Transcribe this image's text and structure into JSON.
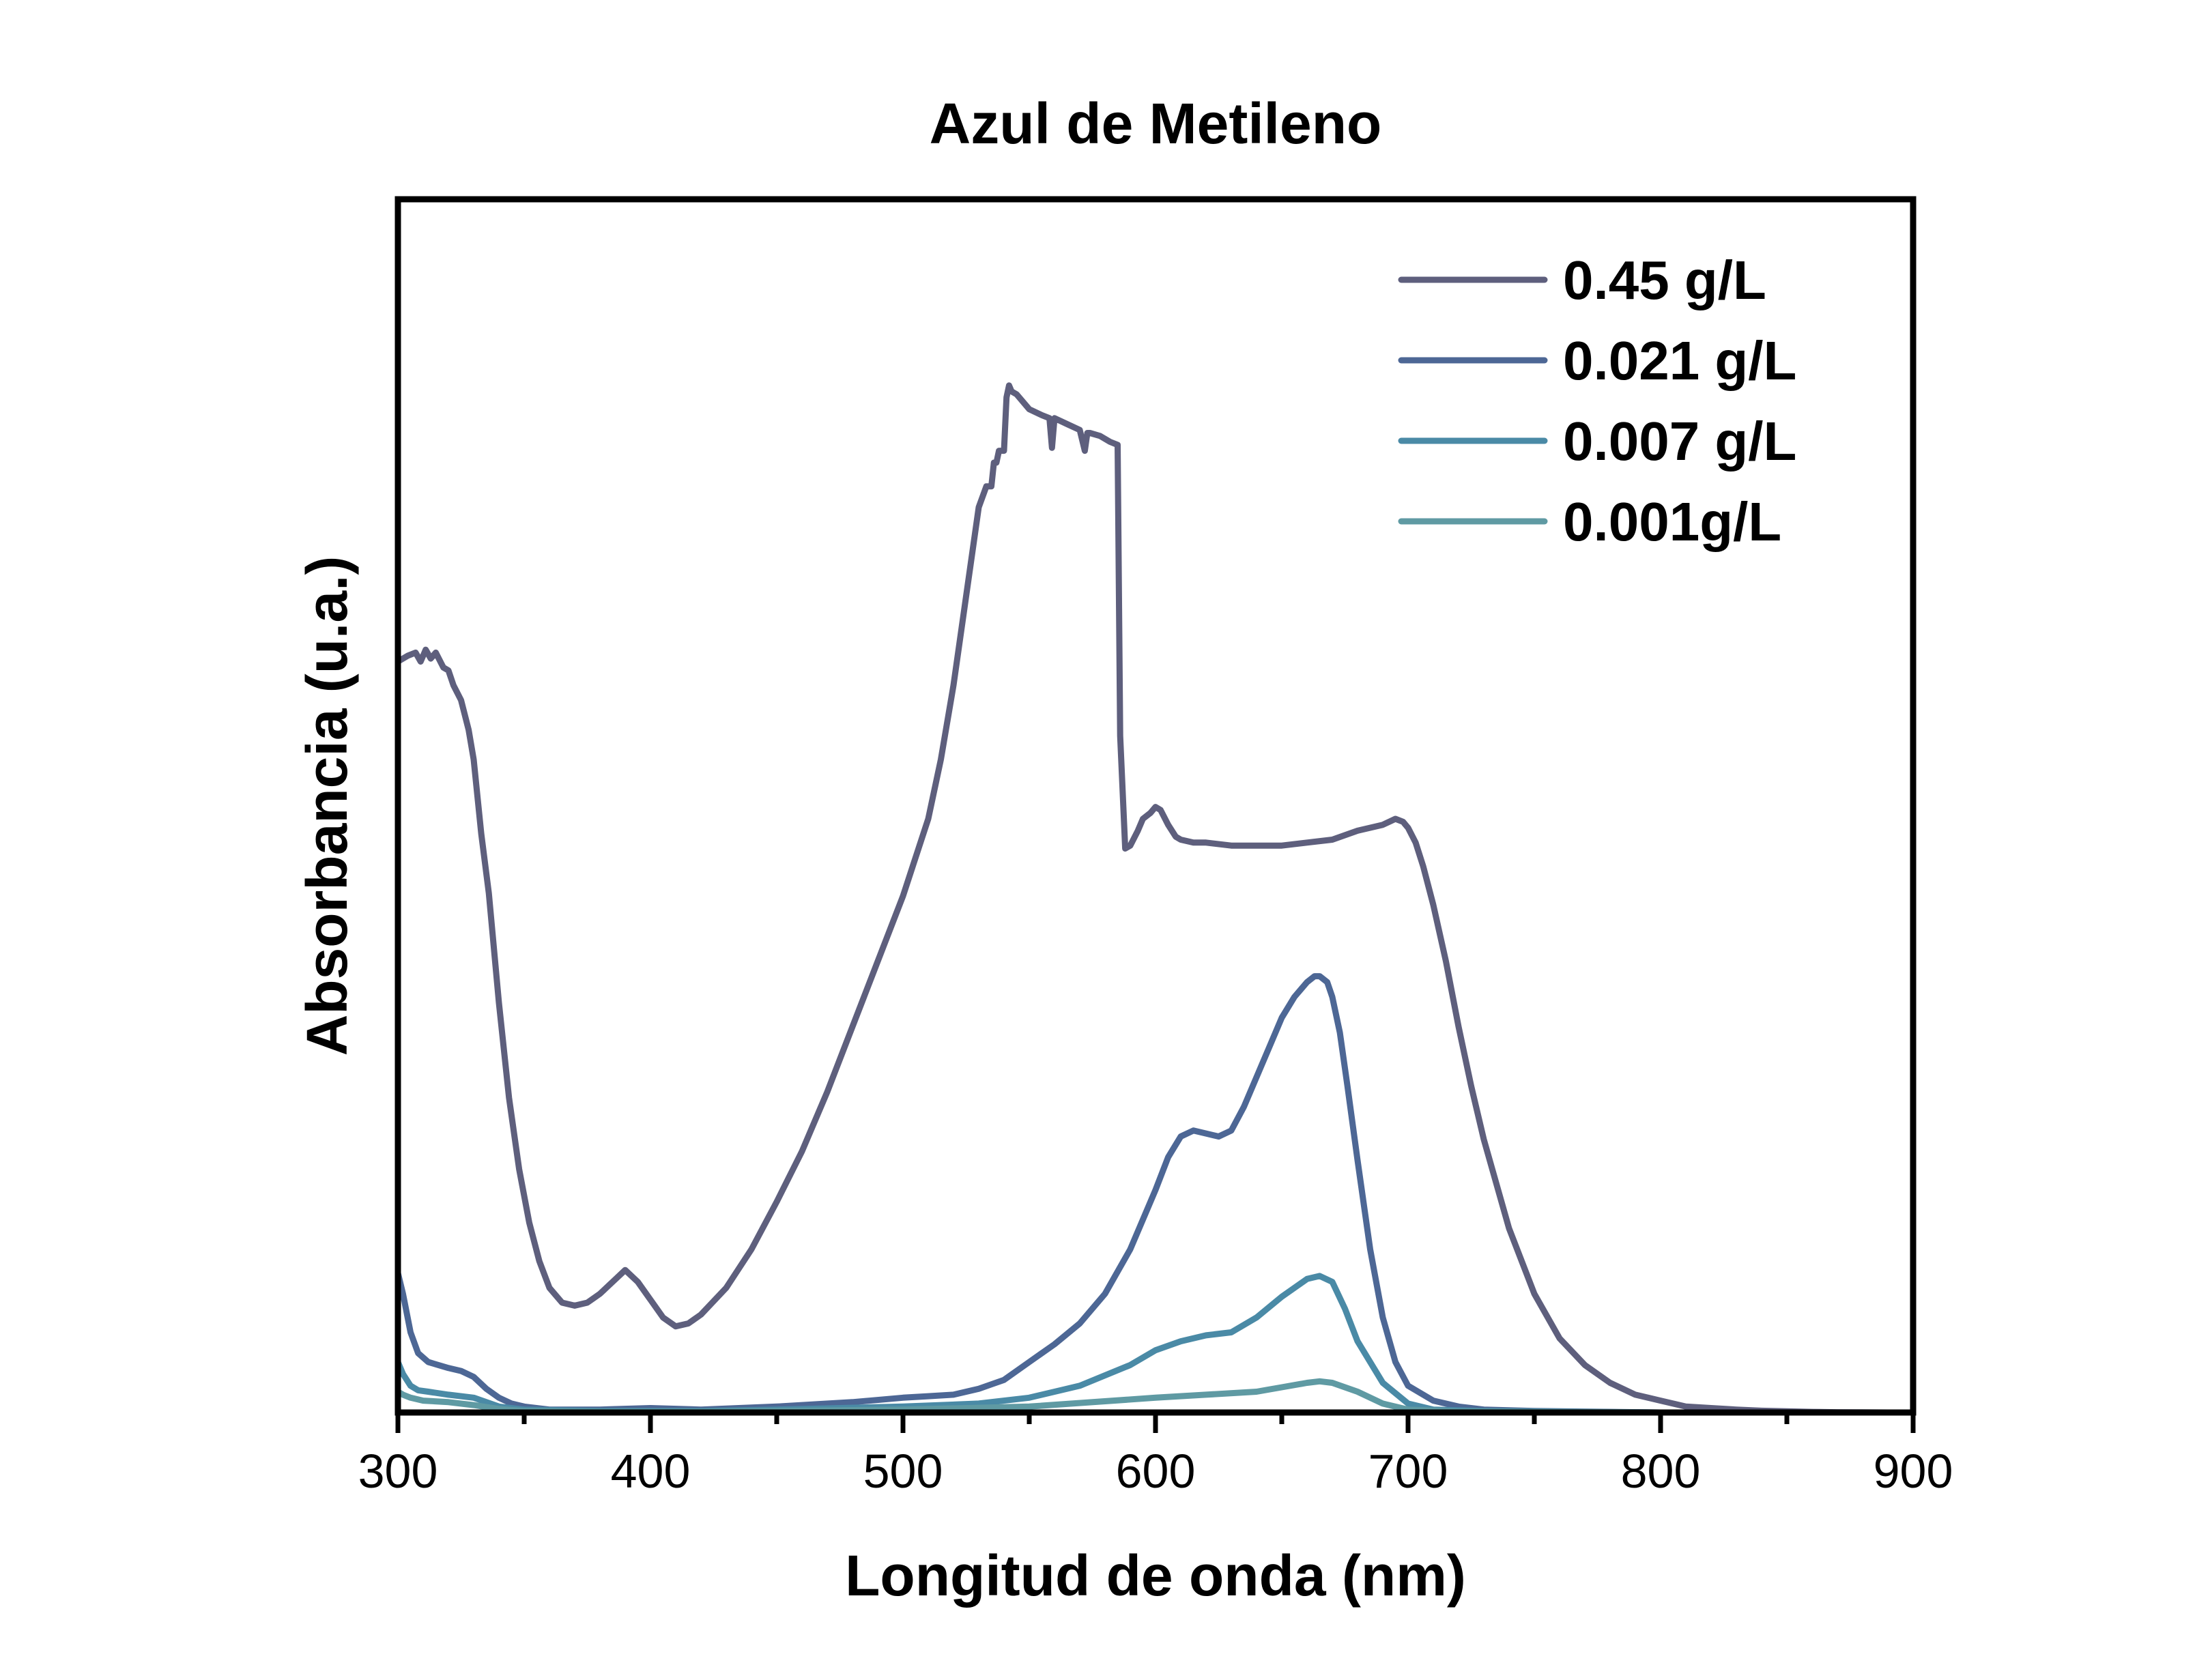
{
  "chart_data": {
    "type": "line",
    "title": "Azul de Metileno",
    "xlabel": "Longitud de onda (nm)",
    "ylabel": "Absorbancia (u.a.)",
    "xlim": [
      300,
      900
    ],
    "ylim": [
      0,
      4.0
    ],
    "x_major_ticks": [
      300,
      400,
      500,
      600,
      700,
      800,
      900
    ],
    "x_minor_ticks": [
      350,
      450,
      550,
      650,
      750,
      850
    ],
    "x_tick_labels": [
      "300",
      "400",
      "500",
      "600",
      "700",
      "800",
      "900"
    ],
    "y_tick_labels_shown": false,
    "legend_position": "top-right",
    "grid": false,
    "series": [
      {
        "name": "0.45 g/L",
        "color": "#5e5f7d",
        "x": [
          300,
          304,
          307,
          309,
          311,
          313,
          315,
          318,
          320,
          322,
          325,
          328,
          330,
          333,
          336,
          340,
          344,
          348,
          352,
          356,
          360,
          365,
          370,
          375,
          380,
          385,
          390,
          395,
          400,
          405,
          410,
          415,
          420,
          430,
          440,
          450,
          460,
          470,
          480,
          490,
          500,
          510,
          515,
          520,
          525,
          530,
          533,
          535,
          536,
          537,
          538,
          539,
          540,
          541,
          542,
          543,
          545,
          550,
          555,
          558,
          559,
          560,
          565,
          570,
          572,
          573,
          574,
          578,
          582,
          585,
          586,
          588,
          590,
          593,
          595,
          598,
          600,
          602,
          605,
          608,
          610,
          615,
          620,
          630,
          640,
          650,
          660,
          670,
          680,
          690,
          695,
          698,
          700,
          703,
          706,
          710,
          715,
          720,
          725,
          730,
          740,
          750,
          760,
          770,
          780,
          790,
          800,
          810,
          820,
          830,
          840,
          850,
          860,
          870,
          880,
          890,
          900
        ],
        "y": [
          2.53,
          2.55,
          2.56,
          2.53,
          2.57,
          2.54,
          2.56,
          2.51,
          2.5,
          2.45,
          2.4,
          2.3,
          2.2,
          1.95,
          1.75,
          1.38,
          1.06,
          0.82,
          0.64,
          0.51,
          0.42,
          0.37,
          0.36,
          0.37,
          0.4,
          0.44,
          0.48,
          0.44,
          0.38,
          0.32,
          0.29,
          0.3,
          0.33,
          0.42,
          0.55,
          0.71,
          0.88,
          1.08,
          1.3,
          1.52,
          1.74,
          2.0,
          2.2,
          2.45,
          2.75,
          3.05,
          3.12,
          3.12,
          3.2,
          3.2,
          3.24,
          3.24,
          3.24,
          3.42,
          3.46,
          3.44,
          3.43,
          3.38,
          3.36,
          3.35,
          3.25,
          3.35,
          3.33,
          3.31,
          3.24,
          3.3,
          3.3,
          3.29,
          3.27,
          3.26,
          2.28,
          1.9,
          1.91,
          1.96,
          2.0,
          2.02,
          2.04,
          2.03,
          1.98,
          1.94,
          1.93,
          1.92,
          1.92,
          1.91,
          1.91,
          1.91,
          1.92,
          1.93,
          1.96,
          1.98,
          2.0,
          1.99,
          1.97,
          1.92,
          1.84,
          1.71,
          1.52,
          1.3,
          1.1,
          0.92,
          0.62,
          0.4,
          0.25,
          0.16,
          0.1,
          0.06,
          0.04,
          0.02,
          0.015,
          0.01,
          0.006,
          0.004,
          0.002,
          0.001,
          0.0005,
          0.0,
          0.0
        ]
      },
      {
        "name": "0.021 g/L",
        "color": "#4d6795",
        "x": [
          300,
          302,
          305,
          308,
          312,
          316,
          320,
          325,
          330,
          335,
          340,
          345,
          350,
          360,
          380,
          400,
          420,
          450,
          480,
          500,
          510,
          520,
          530,
          540,
          550,
          560,
          570,
          580,
          590,
          600,
          605,
          610,
          615,
          620,
          625,
          630,
          635,
          640,
          645,
          650,
          655,
          660,
          663,
          665,
          668,
          670,
          673,
          676,
          680,
          685,
          690,
          695,
          700,
          710,
          720,
          730,
          750,
          800,
          850,
          900
        ],
        "y": [
          0.47,
          0.4,
          0.27,
          0.2,
          0.17,
          0.16,
          0.15,
          0.14,
          0.12,
          0.08,
          0.05,
          0.03,
          0.02,
          0.01,
          0.01,
          0.015,
          0.01,
          0.02,
          0.035,
          0.05,
          0.055,
          0.06,
          0.08,
          0.11,
          0.17,
          0.23,
          0.3,
          0.4,
          0.55,
          0.75,
          0.86,
          0.93,
          0.95,
          0.94,
          0.93,
          0.95,
          1.03,
          1.13,
          1.23,
          1.33,
          1.4,
          1.45,
          1.47,
          1.47,
          1.45,
          1.4,
          1.28,
          1.1,
          0.85,
          0.55,
          0.32,
          0.17,
          0.09,
          0.04,
          0.02,
          0.01,
          0.005,
          0.0,
          0.0,
          0.0
        ]
      },
      {
        "name": "0.007 g/L",
        "color": "#4a8aa6",
        "x": [
          300,
          302,
          305,
          308,
          312,
          320,
          330,
          340,
          350,
          380,
          420,
          450,
          500,
          530,
          550,
          570,
          590,
          600,
          610,
          620,
          630,
          640,
          650,
          660,
          665,
          670,
          675,
          680,
          690,
          700,
          710,
          730,
          800,
          900
        ],
        "y": [
          0.17,
          0.13,
          0.09,
          0.075,
          0.07,
          0.06,
          0.05,
          0.02,
          0.01,
          0.005,
          0.005,
          0.01,
          0.02,
          0.03,
          0.05,
          0.09,
          0.16,
          0.21,
          0.24,
          0.26,
          0.27,
          0.32,
          0.39,
          0.45,
          0.46,
          0.44,
          0.35,
          0.24,
          0.1,
          0.03,
          0.01,
          0.005,
          0.0,
          0.0
        ]
      },
      {
        "name": "0.001g/L",
        "color": "#5f9aa3",
        "x": [
          300,
          302,
          305,
          310,
          320,
          330,
          340,
          350,
          380,
          420,
          500,
          550,
          600,
          620,
          640,
          650,
          660,
          665,
          670,
          680,
          690,
          700,
          720,
          800,
          900
        ],
        "y": [
          0.07,
          0.06,
          0.05,
          0.04,
          0.035,
          0.025,
          0.012,
          0.005,
          0.002,
          0.002,
          0.01,
          0.02,
          0.05,
          0.06,
          0.07,
          0.085,
          0.1,
          0.105,
          0.1,
          0.07,
          0.03,
          0.01,
          0.003,
          0.0,
          0.0
        ]
      }
    ]
  }
}
